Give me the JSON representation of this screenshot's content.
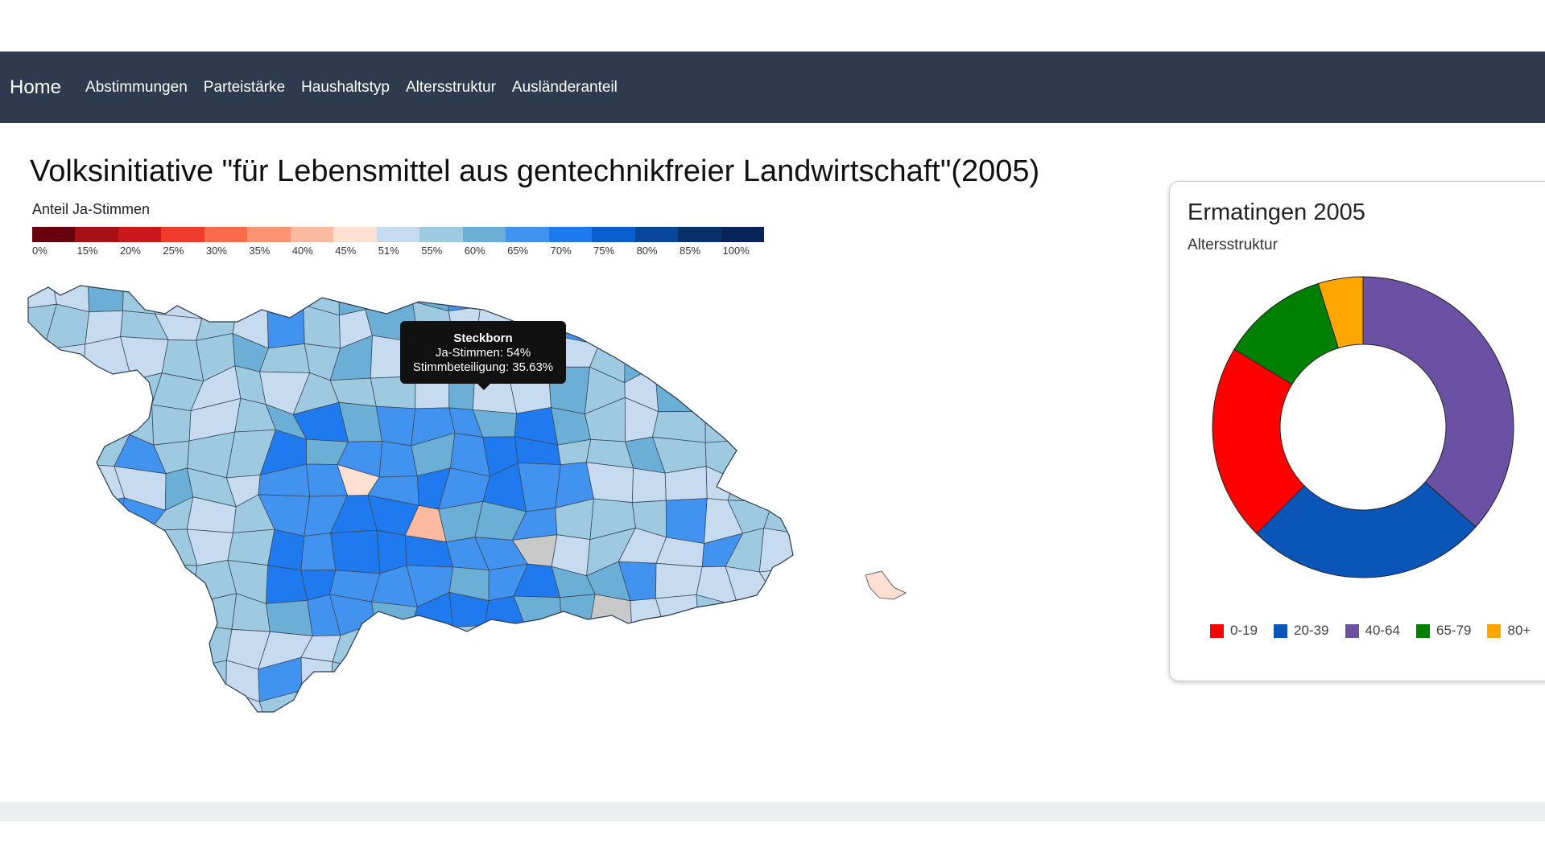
{
  "nav": {
    "brand": "Home",
    "items": [
      "Abstimmungen",
      "Parteistärke",
      "Haushaltstyp",
      "Altersstruktur",
      "Ausländeranteil"
    ]
  },
  "page": {
    "title": "Volksinitiative \"für Lebensmittel aus gentechnikfreier Landwirtschaft\"(2005)"
  },
  "legend": {
    "title": "Anteil Ja-Stimmen",
    "labels": [
      "0%",
      "15%",
      "20%",
      "25%",
      "30%",
      "35%",
      "40%",
      "45%",
      "51%",
      "55%",
      "60%",
      "65%",
      "70%",
      "75%",
      "80%",
      "85%",
      "100%"
    ],
    "colors": [
      "#67000d",
      "#a50f15",
      "#cb181d",
      "#ef3b2c",
      "#fb6a4a",
      "#fc9272",
      "#fcbba1",
      "#fee0d2",
      "#c6dbef",
      "#9ecae1",
      "#6baed6",
      "#4292f0",
      "#1f7aef",
      "#0a5fd0",
      "#08479a",
      "#08306b",
      "#062556"
    ]
  },
  "tooltip": {
    "title": "Steckborn",
    "line1": "Ja-Stimmen: 54%",
    "line2": "Stimmbeteiligung: 35.63%"
  },
  "panel": {
    "title": "Ermatingen 2005",
    "subtitle": "Altersstruktur"
  },
  "chart_data": {
    "type": "pie",
    "categories": [
      "0-19",
      "20-39",
      "40-64",
      "65-79",
      "80+"
    ],
    "values": [
      22,
      27,
      38,
      12,
      5
    ],
    "colors": [
      "#ff0000",
      "#0a56b8",
      "#6a51a3",
      "#008000",
      "#ffa500"
    ],
    "legend": "bottom"
  },
  "map": {
    "color_classes": [
      "#c6dbef",
      "#9ecae1",
      "#6baed6",
      "#4292f0",
      "#1f7aef",
      "#0a5fd0",
      "#fcbba1",
      "#fee0d2",
      "#c9c9c9"
    ]
  }
}
